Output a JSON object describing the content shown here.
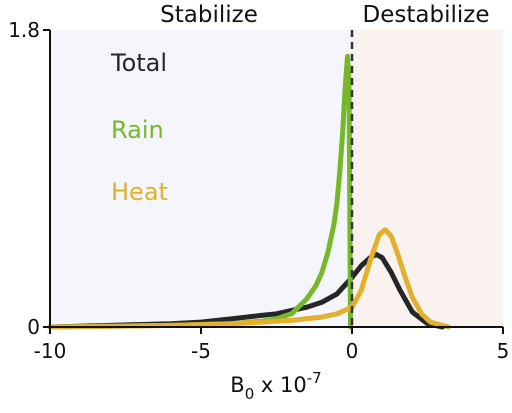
{
  "chart_data": {
    "type": "line",
    "region_labels": {
      "left": "Stabilize",
      "right": "Destabilize"
    },
    "region_colors": {
      "left": "#f4f6fb",
      "right": "#f9f2ee"
    },
    "xlim": [
      -10,
      5
    ],
    "ylim": [
      0,
      1.8
    ],
    "xticks": [
      "-10",
      "-5",
      "0",
      "5"
    ],
    "xtick_values": [
      -10,
      -5,
      0,
      5
    ],
    "yticks": [
      "0",
      "1.8"
    ],
    "ytick_values": [
      0,
      1.8
    ],
    "xlabel": {
      "base": "B",
      "sub": "0",
      "rest": " x 10",
      "sup": "-7"
    },
    "ylabel": "",
    "threshold_x": 0,
    "legend_position": "top-left (inline colored text)",
    "series": [
      {
        "name": "Total",
        "color": "#262626",
        "x": [
          -10,
          -8,
          -6,
          -5,
          -4,
          -3,
          -2.5,
          -2,
          -1.5,
          -1,
          -0.5,
          0,
          0.3,
          0.6,
          0.8,
          1.0,
          1.3,
          1.6,
          2.0,
          2.5,
          3.0
        ],
        "y": [
          0,
          0.01,
          0.02,
          0.03,
          0.05,
          0.07,
          0.08,
          0.1,
          0.12,
          0.15,
          0.2,
          0.3,
          0.37,
          0.42,
          0.44,
          0.42,
          0.33,
          0.22,
          0.09,
          0.02,
          0
        ]
      },
      {
        "name": "Rain",
        "color": "#76b82a",
        "x": [
          -10,
          -8,
          -6,
          -5,
          -4,
          -3,
          -2.5,
          -2,
          -1.5,
          -1.2,
          -1.0,
          -0.8,
          -0.6,
          -0.5,
          -0.4,
          -0.3,
          -0.25,
          -0.2,
          -0.15,
          -0.1,
          -0.05
        ],
        "y": [
          0,
          0.005,
          0.01,
          0.015,
          0.02,
          0.035,
          0.05,
          0.08,
          0.17,
          0.25,
          0.33,
          0.45,
          0.62,
          0.75,
          0.95,
          1.2,
          1.38,
          1.52,
          1.64,
          1.5,
          0
        ]
      },
      {
        "name": "Heat",
        "color": "#e2b02c",
        "x": [
          -10,
          -8,
          -6,
          -4,
          -3,
          -2,
          -1,
          -0.5,
          0,
          0.3,
          0.6,
          0.9,
          1.1,
          1.3,
          1.5,
          1.8,
          2.0,
          2.3,
          2.6,
          3.0,
          3.2
        ],
        "y": [
          0,
          0.005,
          0.01,
          0.02,
          0.03,
          0.04,
          0.06,
          0.08,
          0.12,
          0.22,
          0.4,
          0.56,
          0.59,
          0.55,
          0.45,
          0.28,
          0.18,
          0.08,
          0.03,
          0.01,
          0
        ]
      }
    ]
  }
}
